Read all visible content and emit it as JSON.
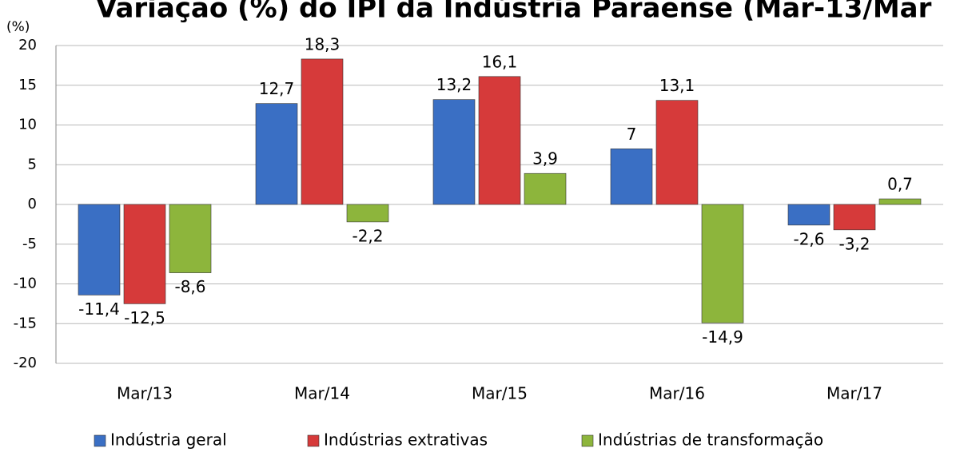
{
  "chart_data": {
    "type": "bar",
    "title": "Variação (%) do IPI da Indústria Paraense (Mar-13/Mar",
    "y_label": "(%)",
    "categories": [
      "Mar/13",
      "Mar/14",
      "Mar/15",
      "Mar/16",
      "Mar/17"
    ],
    "series": [
      {
        "name": "Indústria geral",
        "color": "#3a6fc4",
        "values": [
          -11.4,
          12.7,
          13.2,
          7,
          -2.6
        ],
        "value_labels": [
          "-11,4",
          "12,7",
          "13,2",
          "7",
          "-2,6"
        ]
      },
      {
        "name": "Indústrias extrativas",
        "color": "#d63a3a",
        "values": [
          -12.5,
          18.3,
          16.1,
          13.1,
          -3.2
        ],
        "value_labels": [
          "-12,5",
          "18,3",
          "16,1",
          "13,1",
          "-3,2"
        ]
      },
      {
        "name": "Indústrias de transformação",
        "color": "#8db53c",
        "values": [
          -8.6,
          -2.2,
          3.9,
          -14.9,
          0.7
        ],
        "value_labels": [
          "-8,6",
          "-2,2",
          "3,9",
          "-14,9",
          "0,7"
        ]
      }
    ],
    "ylim": [
      -20,
      20
    ],
    "yticks": [
      -20,
      -15,
      -10,
      -5,
      0,
      5,
      10,
      15,
      20
    ],
    "grid": true,
    "legend": "bottom"
  }
}
